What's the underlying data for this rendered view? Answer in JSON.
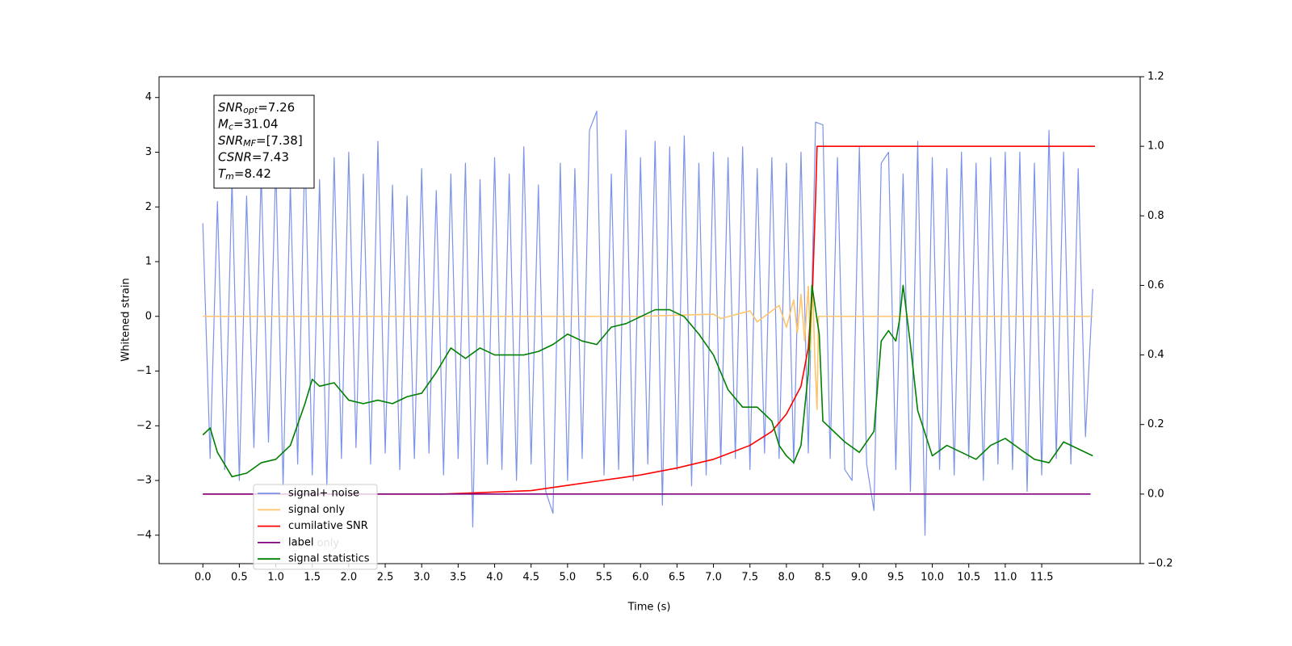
{
  "chart_data": {
    "type": "line",
    "x_label": "Time (s)",
    "y_label": "Whitened strain",
    "xlim": [
      -0.6,
      12.85
    ],
    "ylim": [
      -4.52,
      4.38
    ],
    "y2lim": [
      -0.2,
      1.2
    ],
    "xticks": [
      {
        "value": 0,
        "label": "0.0"
      },
      0.5,
      {
        "value": 1,
        "label": "1.0"
      },
      1.5,
      {
        "value": 2,
        "label": "2.0"
      },
      2.5,
      {
        "value": 3,
        "label": "3.0"
      },
      3.5,
      {
        "value": 4,
        "label": "4.0"
      },
      4.5,
      {
        "value": 5,
        "label": "5.0"
      },
      5.5,
      {
        "value": 6,
        "label": "6.0"
      },
      6.5,
      {
        "value": 7,
        "label": "7.0"
      },
      7.5,
      {
        "value": 8,
        "label": "8.0"
      },
      8.5,
      {
        "value": 9,
        "label": "9.0"
      },
      9.5,
      {
        "value": 10,
        "label": "10.0"
      },
      10.5,
      {
        "value": 11,
        "label": "11.0"
      },
      11.5
    ],
    "yticks": [
      {
        "value": -4,
        "label": "−4"
      },
      {
        "value": -3,
        "label": "−3"
      },
      {
        "value": -2,
        "label": "−2"
      },
      {
        "value": -1,
        "label": "−1"
      },
      0,
      1,
      2,
      3,
      4
    ],
    "y2ticks": [
      {
        "value": -0.2,
        "label": "−0.2"
      },
      {
        "value": 0,
        "label": "0.0"
      },
      0.2,
      0.4,
      0.6,
      0.8,
      {
        "value": 1,
        "label": "1.0"
      },
      1.2
    ],
    "legend": "lower left",
    "series": [
      {
        "name": "signal+ noise",
        "color": "#7b93e8",
        "axis": "y",
        "x": [
          0.0,
          0.1,
          0.2,
          0.3,
          0.4,
          0.5,
          0.6,
          0.7,
          0.8,
          0.9,
          1.0,
          1.1,
          1.2,
          1.3,
          1.4,
          1.5,
          1.6,
          1.7,
          1.8,
          1.9,
          2.0,
          2.1,
          2.2,
          2.3,
          2.4,
          2.5,
          2.6,
          2.7,
          2.8,
          2.9,
          3.0,
          3.1,
          3.2,
          3.3,
          3.4,
          3.5,
          3.6,
          3.7,
          3.8,
          3.9,
          4.0,
          4.1,
          4.2,
          4.3,
          4.4,
          4.5,
          4.6,
          4.7,
          4.8,
          4.9,
          5.0,
          5.1,
          5.2,
          5.3,
          5.4,
          5.5,
          5.6,
          5.7,
          5.8,
          5.9,
          6.0,
          6.1,
          6.2,
          6.3,
          6.4,
          6.5,
          6.6,
          6.7,
          6.8,
          6.9,
          7.0,
          7.1,
          7.2,
          7.3,
          7.4,
          7.5,
          7.6,
          7.7,
          7.8,
          7.9,
          8.0,
          8.1,
          8.2,
          8.3,
          8.4,
          8.5,
          8.6,
          8.7,
          8.8,
          8.9,
          9.0,
          9.1,
          9.2,
          9.3,
          9.4,
          9.5,
          9.6,
          9.7,
          9.8,
          9.9,
          10.0,
          10.1,
          10.2,
          10.3,
          10.4,
          10.5,
          10.6,
          10.7,
          10.8,
          10.9,
          11.0,
          11.1,
          11.2,
          11.3,
          11.4,
          11.5,
          11.6,
          11.7,
          11.8,
          11.9,
          12.0,
          12.1,
          12.2
        ],
        "values": [
          1.7,
          -2.6,
          2.1,
          -2.8,
          2.5,
          -3.0,
          2.2,
          -2.4,
          2.6,
          -2.3,
          2.8,
          -3.1,
          2.4,
          -2.7,
          3.1,
          -2.9,
          2.5,
          -3.1,
          2.9,
          -2.6,
          3.0,
          -2.4,
          2.6,
          -2.7,
          3.2,
          -2.5,
          2.4,
          -2.8,
          2.2,
          -2.6,
          2.7,
          -2.5,
          2.3,
          -2.9,
          2.6,
          -2.6,
          2.8,
          -3.85,
          2.5,
          -2.7,
          2.9,
          -2.8,
          2.6,
          -3.0,
          3.1,
          -2.7,
          2.4,
          -3.2,
          -3.6,
          2.8,
          -3.0,
          2.7,
          -2.6,
          3.4,
          3.75,
          -2.9,
          2.6,
          -2.8,
          3.4,
          -3.0,
          2.9,
          -2.7,
          3.2,
          -3.45,
          3.1,
          -2.8,
          3.3,
          -3.1,
          2.8,
          -2.9,
          3.0,
          -2.7,
          2.9,
          -2.6,
          3.1,
          -2.8,
          2.7,
          -2.5,
          2.9,
          -2.6,
          2.8,
          -2.7,
          3.0,
          -2.5,
          3.55,
          3.5,
          -2.6,
          2.9,
          -2.8,
          -3.0,
          3.1,
          -2.7,
          -3.55,
          2.8,
          3.0,
          -2.8,
          2.6,
          -3.2,
          3.2,
          -4.0,
          2.9,
          -2.8,
          2.7,
          -2.9,
          3.0,
          -2.6,
          2.8,
          -3.0,
          2.9,
          -2.7,
          3.0,
          -2.8,
          3.0,
          -3.2,
          2.8,
          -2.9,
          3.4,
          -2.6,
          3.0,
          -2.7,
          2.7,
          -2.2,
          0.5
        ]
      },
      {
        "name": "signal only",
        "color": "#ffc46e",
        "axis": "y",
        "x": [
          0,
          6.0,
          7.0,
          7.1,
          7.5,
          7.6,
          7.9,
          8.0,
          8.1,
          8.15,
          8.2,
          8.25,
          8.3,
          8.33,
          8.36,
          8.39,
          8.42,
          8.44,
          12.2
        ],
        "values": [
          0,
          0,
          0.04,
          -0.04,
          0.1,
          -0.1,
          0.2,
          -0.2,
          0.3,
          -0.3,
          0.4,
          -0.45,
          0.55,
          -0.6,
          0.6,
          -0.8,
          -1.7,
          0,
          0
        ]
      },
      {
        "name": "cumilative SNR",
        "color": "#ff0000",
        "axis": "y2",
        "x": [
          0,
          3.3,
          4.5,
          5.0,
          5.5,
          6.0,
          6.5,
          7.0,
          7.5,
          7.8,
          8.0,
          8.2,
          8.3,
          8.36,
          8.4,
          8.42,
          12.23
        ],
        "values": [
          0,
          0,
          0.01,
          0.025,
          0.04,
          0.055,
          0.075,
          0.1,
          0.14,
          0.18,
          0.23,
          0.31,
          0.42,
          0.6,
          0.85,
          1.0,
          1.0
        ]
      },
      {
        "name": "label",
        "color": "#800080",
        "axis": "y2",
        "x": [
          0,
          12.17
        ],
        "values": [
          0,
          0
        ]
      },
      {
        "name": "signal statistics",
        "color": "#008000",
        "axis": "y2",
        "x": [
          0.0,
          0.1,
          0.2,
          0.4,
          0.6,
          0.8,
          1.0,
          1.2,
          1.4,
          1.5,
          1.6,
          1.8,
          2.0,
          2.2,
          2.4,
          2.6,
          2.8,
          3.0,
          3.2,
          3.4,
          3.6,
          3.8,
          4.0,
          4.2,
          4.4,
          4.6,
          4.8,
          5.0,
          5.2,
          5.4,
          5.6,
          5.8,
          6.0,
          6.2,
          6.4,
          6.6,
          6.8,
          7.0,
          7.2,
          7.4,
          7.6,
          7.8,
          7.9,
          8.0,
          8.1,
          8.2,
          8.3,
          8.35,
          8.45,
          8.5,
          8.6,
          8.8,
          9.0,
          9.2,
          9.3,
          9.4,
          9.5,
          9.55,
          9.6,
          9.7,
          9.8,
          10.0,
          10.2,
          10.4,
          10.6,
          10.8,
          11.0,
          11.2,
          11.4,
          11.6,
          11.8,
          12.2
        ],
        "values": [
          0.17,
          0.19,
          0.12,
          0.05,
          0.06,
          0.09,
          0.1,
          0.14,
          0.26,
          0.33,
          0.31,
          0.32,
          0.27,
          0.26,
          0.27,
          0.26,
          0.28,
          0.29,
          0.35,
          0.42,
          0.39,
          0.42,
          0.4,
          0.4,
          0.4,
          0.41,
          0.43,
          0.46,
          0.44,
          0.43,
          0.48,
          0.49,
          0.51,
          0.53,
          0.53,
          0.51,
          0.46,
          0.4,
          0.3,
          0.25,
          0.25,
          0.21,
          0.14,
          0.11,
          0.09,
          0.14,
          0.35,
          0.6,
          0.46,
          0.21,
          0.19,
          0.15,
          0.12,
          0.18,
          0.44,
          0.47,
          0.44,
          0.5,
          0.6,
          0.43,
          0.24,
          0.11,
          0.14,
          0.12,
          0.1,
          0.14,
          0.16,
          0.13,
          0.1,
          0.09,
          0.15,
          0.11
        ]
      }
    ],
    "hidden_text": "label only",
    "info_box": [
      {
        "main": "SNR",
        "sub": "opt",
        "rest": "=7.26"
      },
      {
        "main": "M",
        "sub": "c",
        "rest": "=31.04"
      },
      {
        "main": "SNR",
        "sub": "MF",
        "rest": "=[7.38]"
      },
      {
        "main": "CSNR",
        "sub": "",
        "rest": "=7.43"
      },
      {
        "main": "T",
        "sub": "m",
        "rest": "=8.42"
      }
    ]
  }
}
